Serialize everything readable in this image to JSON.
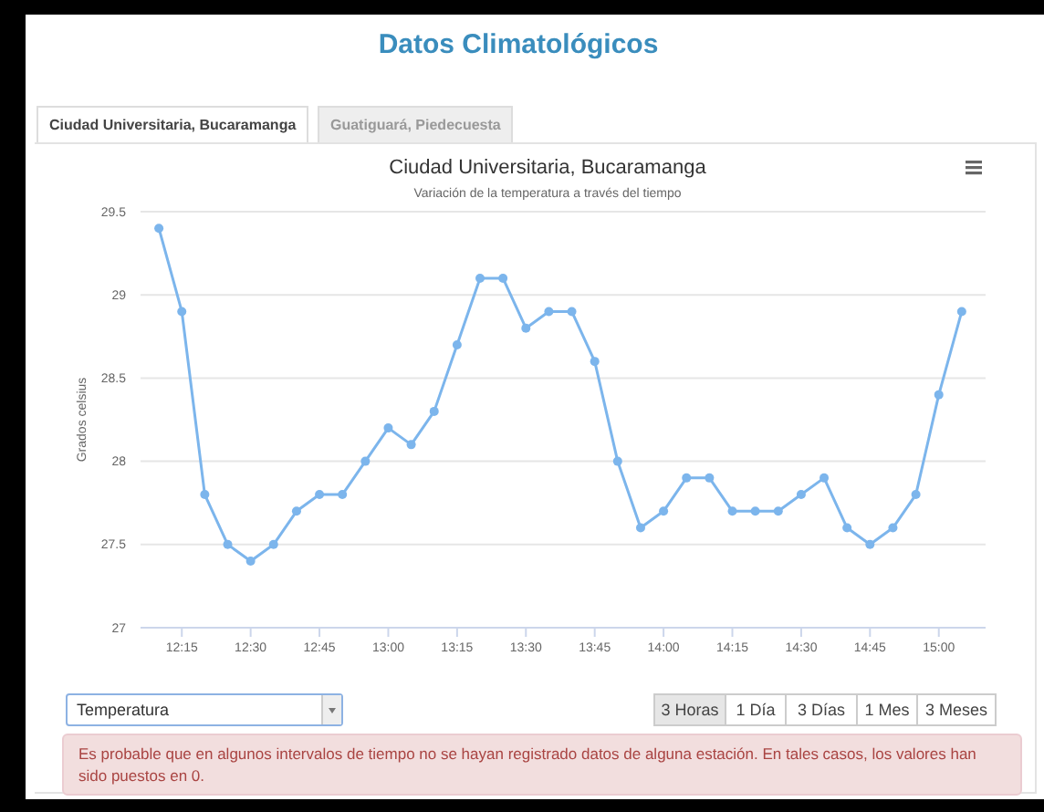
{
  "chart_data": {
    "type": "line",
    "title": "Ciudad Universitaria, Bucaramanga",
    "subtitle": "Variación de la temperatura a través del tiempo",
    "ylabel": "Grados celsius",
    "annotations": [
      "Datos Climatológicos",
      "Ciudad Universitaria, Bucaramanga",
      "Guatiguará, Piedecuesta",
      "Temperatura",
      "3 Horas",
      "1 Día",
      "3 Días",
      "1 Mes",
      "3 Meses",
      "Es probable que en algunos intervalos de tiempo no se hayan registrado datos de alguna estación. En tales casos, los valores han sido puestos en 0."
    ],
    "x": [
      12.1667,
      12.25,
      12.3333,
      12.4167,
      12.5,
      12.5833,
      12.6667,
      12.75,
      12.8333,
      12.9167,
      13,
      13.0833,
      13.1667,
      13.25,
      13.3333,
      13.4167,
      13.5,
      13.5833,
      13.6667,
      13.75,
      13.8333,
      13.9167,
      14,
      14.0833,
      14.1667,
      14.25,
      14.3333,
      14.4167,
      14.5,
      14.5833,
      14.6667,
      14.75,
      14.8333,
      14.9167,
      15,
      15.0833
    ],
    "series": [
      {
        "color": "#7cb5ec",
        "values": [
          29.4,
          28.9,
          27.8,
          27.5,
          27.4,
          27.5,
          27.7,
          27.8,
          27.8,
          28.0,
          28.2,
          28.1,
          28.3,
          28.7,
          29.1,
          29.1,
          28.8,
          28.9,
          28.9,
          28.6,
          28.0,
          27.6,
          27.7,
          27.9,
          27.9,
          27.7,
          27.7,
          27.7,
          27.8,
          27.9,
          27.6,
          27.5,
          27.6,
          27.8,
          28.4,
          28.9
        ]
      }
    ],
    "xlim": [
      12.1,
      15.17
    ],
    "xticks": [
      {
        "value": 12.25,
        "label": "12:15"
      },
      {
        "value": 12.5,
        "label": "12:30"
      },
      {
        "value": 12.75,
        "label": "12:45"
      },
      {
        "value": 13,
        "label": "13:00"
      },
      {
        "value": 13.25,
        "label": "13:15"
      },
      {
        "value": 13.5,
        "label": "13:30"
      },
      {
        "value": 13.75,
        "label": "13:45"
      },
      {
        "value": 14,
        "label": "14:00"
      },
      {
        "value": 14.25,
        "label": "14:15"
      },
      {
        "value": 14.5,
        "label": "14:30"
      },
      {
        "value": 14.75,
        "label": "14:45"
      },
      {
        "value": 15,
        "label": "15:00"
      }
    ],
    "ylim": [
      27,
      29.5
    ],
    "yticks": [
      27,
      27.5,
      28,
      28.5,
      29,
      29.5
    ],
    "grid": "y",
    "marker": "circle",
    "line_style": "solid"
  }
}
